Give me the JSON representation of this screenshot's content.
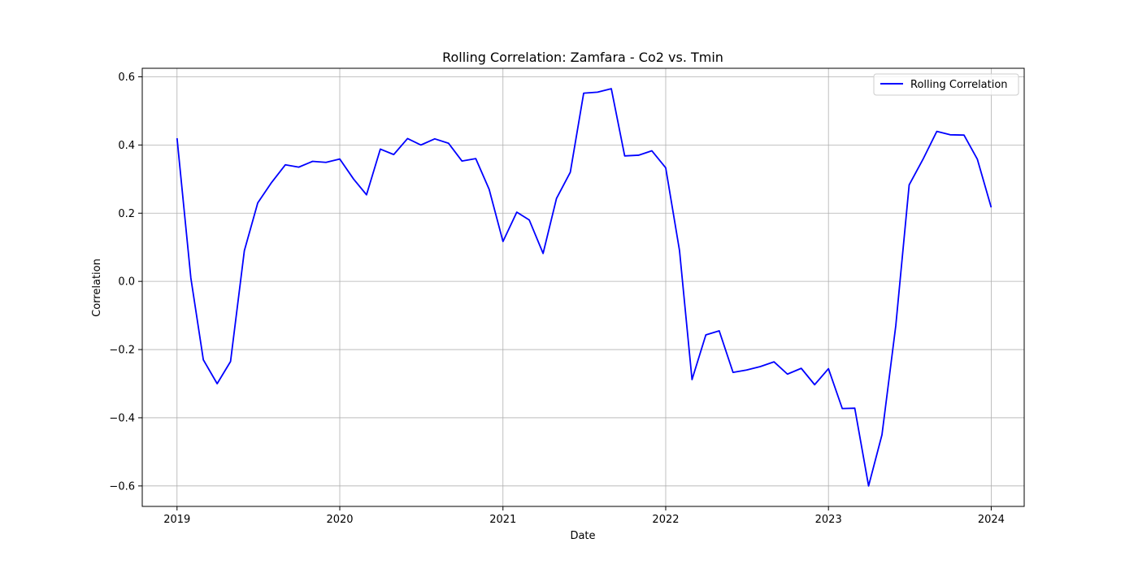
{
  "chart_data": {
    "type": "line",
    "title": "Rolling Correlation: Zamfara - Co2 vs. Tmin",
    "xlabel": "Date",
    "ylabel": "Correlation",
    "xlim": [
      "2018-10-15",
      "2024-03-15"
    ],
    "ylim": [
      -0.66,
      0.625
    ],
    "x_ticks": [
      "2019-01-01",
      "2020-01-01",
      "2021-01-01",
      "2022-01-01",
      "2023-01-01",
      "2024-01-01"
    ],
    "x_tick_labels": [
      "2019",
      "2020",
      "2021",
      "2022",
      "2023",
      "2024"
    ],
    "y_ticks": [
      -0.6,
      -0.4,
      -0.2,
      0.0,
      0.2,
      0.4,
      0.6
    ],
    "y_tick_labels": [
      "−0.6",
      "−0.4",
      "−0.2",
      "0.0",
      "0.2",
      "0.4",
      "0.6"
    ],
    "grid": true,
    "legend": {
      "position": "upper-right",
      "entries": [
        "Rolling Correlation"
      ]
    },
    "series": [
      {
        "name": "Rolling Correlation",
        "color": "#0000ff",
        "x": [
          "2019-01-01",
          "2019-02-01",
          "2019-03-01",
          "2019-04-01",
          "2019-05-01",
          "2019-06-01",
          "2019-07-01",
          "2019-08-01",
          "2019-09-01",
          "2019-10-01",
          "2019-11-01",
          "2019-12-01",
          "2020-01-01",
          "2020-02-01",
          "2020-03-01",
          "2020-04-01",
          "2020-05-01",
          "2020-06-01",
          "2020-07-01",
          "2020-08-01",
          "2020-09-01",
          "2020-10-01",
          "2020-11-01",
          "2020-12-01",
          "2021-01-01",
          "2021-02-01",
          "2021-03-01",
          "2021-04-01",
          "2021-05-01",
          "2021-06-01",
          "2021-07-01",
          "2021-08-01",
          "2021-09-01",
          "2021-10-01",
          "2021-11-01",
          "2021-12-01",
          "2022-01-01",
          "2022-02-01",
          "2022-03-01",
          "2022-04-01",
          "2022-05-01",
          "2022-06-01",
          "2022-07-01",
          "2022-08-01",
          "2022-09-01",
          "2022-10-01",
          "2022-11-01",
          "2022-12-01",
          "2023-01-01",
          "2023-02-01",
          "2023-03-01",
          "2023-04-01",
          "2023-05-01",
          "2023-06-01",
          "2023-07-01",
          "2023-08-01",
          "2023-09-01",
          "2023-10-01",
          "2023-11-01",
          "2023-12-01",
          "2024-01-01"
        ],
        "values": [
          0.42,
          0.01,
          -0.23,
          -0.3,
          -0.235,
          0.09,
          0.23,
          0.29,
          0.342,
          0.335,
          0.352,
          0.349,
          0.359,
          0.3,
          0.254,
          0.388,
          0.372,
          0.419,
          0.4,
          0.418,
          0.405,
          0.353,
          0.36,
          0.27,
          0.117,
          0.203,
          0.18,
          0.082,
          0.243,
          0.32,
          0.552,
          0.555,
          0.565,
          0.368,
          0.37,
          0.383,
          0.333,
          0.09,
          -0.288,
          -0.157,
          -0.145,
          -0.267,
          -0.26,
          -0.25,
          -0.236,
          -0.272,
          -0.255,
          -0.303,
          -0.256,
          -0.373,
          -0.372,
          -0.6,
          -0.45,
          -0.13,
          0.283,
          0.358,
          0.44,
          0.43,
          0.429,
          0.358,
          0.217
        ]
      }
    ]
  }
}
